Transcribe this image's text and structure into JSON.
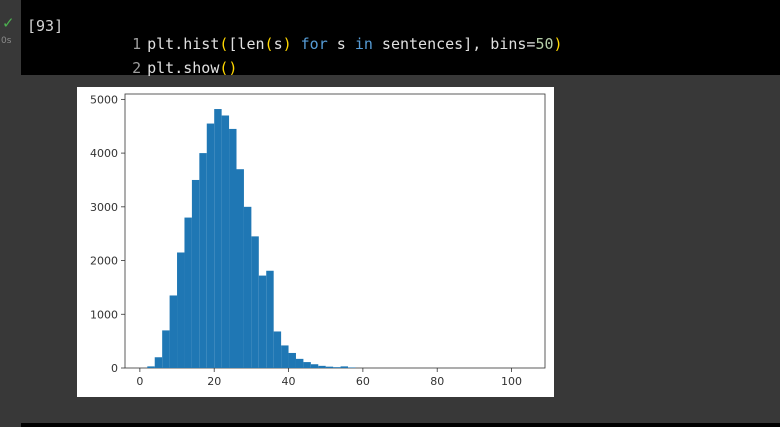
{
  "cell": {
    "status_icon": "check-icon",
    "status_color": "#4caf50",
    "exec_time": "0s",
    "exec_count": "[93]",
    "lines": [
      {
        "number": "1",
        "tokens": [
          {
            "text": "plt.hist",
            "cls": ""
          },
          {
            "text": "(",
            "cls": "paren"
          },
          {
            "text": "[len",
            "cls": ""
          },
          {
            "text": "(",
            "cls": "paren"
          },
          {
            "text": "s",
            "cls": ""
          },
          {
            "text": ")",
            "cls": "paren"
          },
          {
            "text": " for ",
            "cls": "kw"
          },
          {
            "text": "s ",
            "cls": ""
          },
          {
            "text": "in",
            "cls": "kw"
          },
          {
            "text": " sentences], bins=",
            "cls": ""
          },
          {
            "text": "50",
            "cls": "num"
          },
          {
            "text": ")",
            "cls": "paren"
          }
        ]
      },
      {
        "number": "2",
        "tokens": [
          {
            "text": "plt.show",
            "cls": ""
          },
          {
            "text": "()",
            "cls": "paren"
          }
        ]
      }
    ]
  },
  "chart_data": {
    "type": "bar",
    "xlim": [
      -4,
      109
    ],
    "ylim": [
      0,
      5100
    ],
    "xticks": [
      0,
      20,
      40,
      60,
      80,
      100
    ],
    "yticks": [
      0,
      1000,
      2000,
      3000,
      4000,
      5000
    ],
    "bar_color": "#1f77b4",
    "bin_start": 2,
    "bin_width": 2,
    "values": [
      30,
      200,
      700,
      1350,
      2150,
      2800,
      3500,
      4000,
      4550,
      4820,
      4700,
      4450,
      3700,
      3000,
      2450,
      1720,
      1810,
      680,
      420,
      280,
      170,
      110,
      70,
      40,
      25,
      15,
      30,
      10
    ]
  }
}
